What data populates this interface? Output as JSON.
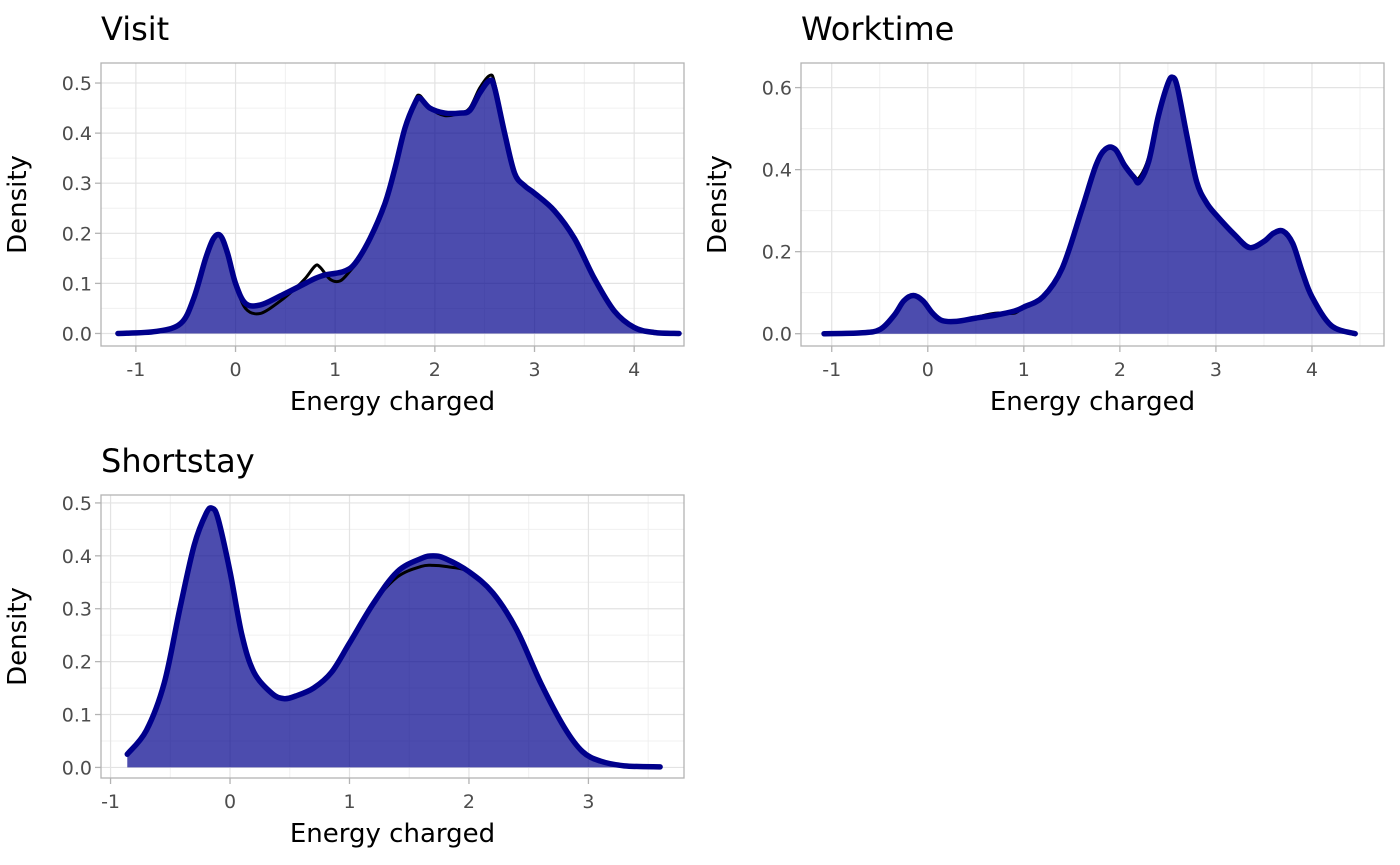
{
  "chart_data": [
    {
      "type": "area",
      "title": "Visit",
      "xlabel": "Energy charged",
      "ylabel": "Density",
      "xlim": [
        -1.35,
        4.5
      ],
      "ylim": [
        -0.025,
        0.54
      ],
      "xticks": [
        -1,
        0,
        1,
        2,
        3,
        4
      ],
      "yticks": [
        0.0,
        0.1,
        0.2,
        0.3,
        0.4,
        0.5
      ],
      "xtick_labels": [
        "-1",
        "0",
        "1",
        "2",
        "3",
        "4"
      ],
      "ytick_labels": [
        "0.0",
        "0.1",
        "0.2",
        "0.3",
        "0.4",
        "0.5"
      ],
      "grid": true,
      "series": [
        {
          "style": "filled",
          "color": "#00008B",
          "x": [
            -1.18,
            -0.8,
            -0.55,
            -0.42,
            -0.3,
            -0.22,
            -0.15,
            -0.08,
            0.0,
            0.1,
            0.25,
            0.45,
            0.7,
            0.8,
            0.9,
            1.0,
            1.1,
            1.2,
            1.35,
            1.5,
            1.6,
            1.7,
            1.8,
            1.85,
            1.95,
            2.1,
            2.25,
            2.35,
            2.45,
            2.55,
            2.6,
            2.7,
            2.8,
            2.9,
            3.0,
            3.2,
            3.4,
            3.6,
            3.8,
            4.0,
            4.2,
            4.45
          ],
          "y": [
            0.0,
            0.004,
            0.02,
            0.07,
            0.15,
            0.19,
            0.195,
            0.16,
            0.1,
            0.06,
            0.057,
            0.075,
            0.1,
            0.11,
            0.117,
            0.12,
            0.125,
            0.14,
            0.19,
            0.26,
            0.33,
            0.41,
            0.46,
            0.47,
            0.45,
            0.44,
            0.44,
            0.445,
            0.48,
            0.505,
            0.49,
            0.4,
            0.32,
            0.295,
            0.28,
            0.245,
            0.19,
            0.11,
            0.045,
            0.012,
            0.002,
            0.0
          ]
        },
        {
          "style": "thin-line",
          "color": "#000000",
          "x": [
            -1.18,
            -0.8,
            -0.55,
            -0.42,
            -0.3,
            -0.22,
            -0.15,
            -0.08,
            0.0,
            0.1,
            0.25,
            0.45,
            0.6,
            0.7,
            0.8,
            0.85,
            0.95,
            1.05,
            1.15,
            1.25,
            1.35,
            1.5,
            1.6,
            1.7,
            1.8,
            1.85,
            1.95,
            2.1,
            2.25,
            2.35,
            2.45,
            2.55,
            2.6,
            2.7,
            2.8,
            2.9,
            3.0,
            3.2,
            3.4,
            3.6,
            3.8,
            4.0,
            4.2,
            4.45
          ],
          "y": [
            0.0,
            0.004,
            0.02,
            0.07,
            0.15,
            0.19,
            0.195,
            0.16,
            0.1,
            0.05,
            0.04,
            0.065,
            0.09,
            0.11,
            0.135,
            0.132,
            0.108,
            0.105,
            0.125,
            0.15,
            0.19,
            0.26,
            0.33,
            0.41,
            0.465,
            0.475,
            0.45,
            0.435,
            0.44,
            0.45,
            0.49,
            0.515,
            0.5,
            0.4,
            0.32,
            0.295,
            0.28,
            0.245,
            0.19,
            0.11,
            0.045,
            0.012,
            0.002,
            0.0
          ]
        }
      ]
    },
    {
      "type": "area",
      "title": "Worktime",
      "xlabel": "Energy charged",
      "ylabel": "Density",
      "xlim": [
        -1.32,
        4.75
      ],
      "ylim": [
        -0.03,
        0.66
      ],
      "xticks": [
        -1,
        0,
        1,
        2,
        3,
        4
      ],
      "yticks": [
        0.0,
        0.2,
        0.4,
        0.6
      ],
      "xtick_labels": [
        "-1",
        "0",
        "1",
        "2",
        "3",
        "4"
      ],
      "ytick_labels": [
        "0.0",
        "0.2",
        "0.4",
        "0.6"
      ],
      "grid": true,
      "series": [
        {
          "style": "filled",
          "color": "#00008B",
          "x": [
            -1.08,
            -0.7,
            -0.5,
            -0.35,
            -0.25,
            -0.15,
            -0.05,
            0.05,
            0.15,
            0.3,
            0.5,
            0.7,
            0.9,
            1.0,
            1.2,
            1.4,
            1.6,
            1.75,
            1.85,
            1.95,
            2.05,
            2.15,
            2.2,
            2.3,
            2.4,
            2.5,
            2.55,
            2.6,
            2.7,
            2.8,
            2.9,
            3.0,
            3.2,
            3.35,
            3.5,
            3.6,
            3.7,
            3.8,
            3.9,
            4.0,
            4.2,
            4.45
          ],
          "y": [
            0.0,
            0.002,
            0.01,
            0.045,
            0.08,
            0.093,
            0.08,
            0.05,
            0.032,
            0.03,
            0.038,
            0.045,
            0.055,
            0.065,
            0.09,
            0.16,
            0.3,
            0.41,
            0.45,
            0.45,
            0.41,
            0.38,
            0.37,
            0.42,
            0.53,
            0.61,
            0.625,
            0.6,
            0.48,
            0.37,
            0.32,
            0.29,
            0.24,
            0.21,
            0.225,
            0.245,
            0.25,
            0.22,
            0.15,
            0.09,
            0.02,
            0.0
          ]
        },
        {
          "style": "thin-line",
          "color": "#000000",
          "x": [
            -1.08,
            -0.7,
            -0.5,
            -0.35,
            -0.25,
            -0.15,
            -0.05,
            0.05,
            0.15,
            0.3,
            0.5,
            0.7,
            0.9,
            1.0,
            1.2,
            1.4,
            1.6,
            1.75,
            1.85,
            1.95,
            2.05,
            2.15,
            2.2,
            2.3,
            2.4,
            2.5,
            2.55,
            2.6,
            2.7,
            2.8,
            2.9,
            3.0,
            3.2,
            3.35,
            3.5,
            3.6,
            3.7,
            3.8,
            3.9,
            4.0,
            4.2,
            4.45
          ],
          "y": [
            0.0,
            0.002,
            0.01,
            0.045,
            0.08,
            0.093,
            0.08,
            0.05,
            0.032,
            0.03,
            0.04,
            0.05,
            0.05,
            0.065,
            0.09,
            0.16,
            0.3,
            0.41,
            0.45,
            0.45,
            0.415,
            0.385,
            0.38,
            0.43,
            0.535,
            0.61,
            0.625,
            0.6,
            0.48,
            0.37,
            0.32,
            0.29,
            0.24,
            0.21,
            0.225,
            0.245,
            0.25,
            0.22,
            0.15,
            0.09,
            0.02,
            0.0
          ]
        }
      ]
    },
    {
      "type": "area",
      "title": "Shortstay",
      "xlabel": "Energy charged",
      "ylabel": "Density",
      "xlim": [
        -1.08,
        3.8
      ],
      "ylim": [
        -0.02,
        0.515
      ],
      "xticks": [
        -1,
        0,
        1,
        2,
        3
      ],
      "yticks": [
        0.0,
        0.1,
        0.2,
        0.3,
        0.4,
        0.5
      ],
      "xtick_labels": [
        "-1",
        "0",
        "1",
        "2",
        "3"
      ],
      "ytick_labels": [
        "0.0",
        "0.1",
        "0.2",
        "0.3",
        "0.4",
        "0.5"
      ],
      "grid": true,
      "series": [
        {
          "style": "filled",
          "color": "#00008B",
          "x": [
            -0.86,
            -0.7,
            -0.55,
            -0.42,
            -0.3,
            -0.2,
            -0.15,
            -0.1,
            0.0,
            0.1,
            0.2,
            0.35,
            0.45,
            0.55,
            0.7,
            0.85,
            1.0,
            1.2,
            1.4,
            1.6,
            1.7,
            1.8,
            2.0,
            2.2,
            2.4,
            2.6,
            2.8,
            2.95,
            3.1,
            3.3,
            3.6
          ],
          "y": [
            0.025,
            0.07,
            0.16,
            0.3,
            0.42,
            0.48,
            0.49,
            0.47,
            0.37,
            0.25,
            0.18,
            0.14,
            0.13,
            0.135,
            0.15,
            0.18,
            0.235,
            0.31,
            0.37,
            0.395,
            0.4,
            0.395,
            0.37,
            0.33,
            0.26,
            0.16,
            0.075,
            0.03,
            0.012,
            0.003,
            0.001
          ]
        },
        {
          "style": "thin-line",
          "color": "#000000",
          "x": [
            -0.86,
            -0.7,
            -0.55,
            -0.42,
            -0.3,
            -0.2,
            -0.15,
            -0.1,
            0.0,
            0.1,
            0.2,
            0.35,
            0.45,
            0.55,
            0.7,
            0.85,
            1.0,
            1.2,
            1.4,
            1.6,
            1.7,
            1.8,
            2.0,
            2.2,
            2.4,
            2.6,
            2.8,
            2.95,
            3.1,
            3.3,
            3.6
          ],
          "y": [
            0.025,
            0.07,
            0.16,
            0.3,
            0.42,
            0.48,
            0.49,
            0.47,
            0.37,
            0.25,
            0.18,
            0.14,
            0.13,
            0.135,
            0.15,
            0.18,
            0.235,
            0.31,
            0.36,
            0.38,
            0.382,
            0.38,
            0.37,
            0.33,
            0.26,
            0.16,
            0.078,
            0.03,
            0.012,
            0.003,
            0.001
          ]
        }
      ]
    }
  ]
}
